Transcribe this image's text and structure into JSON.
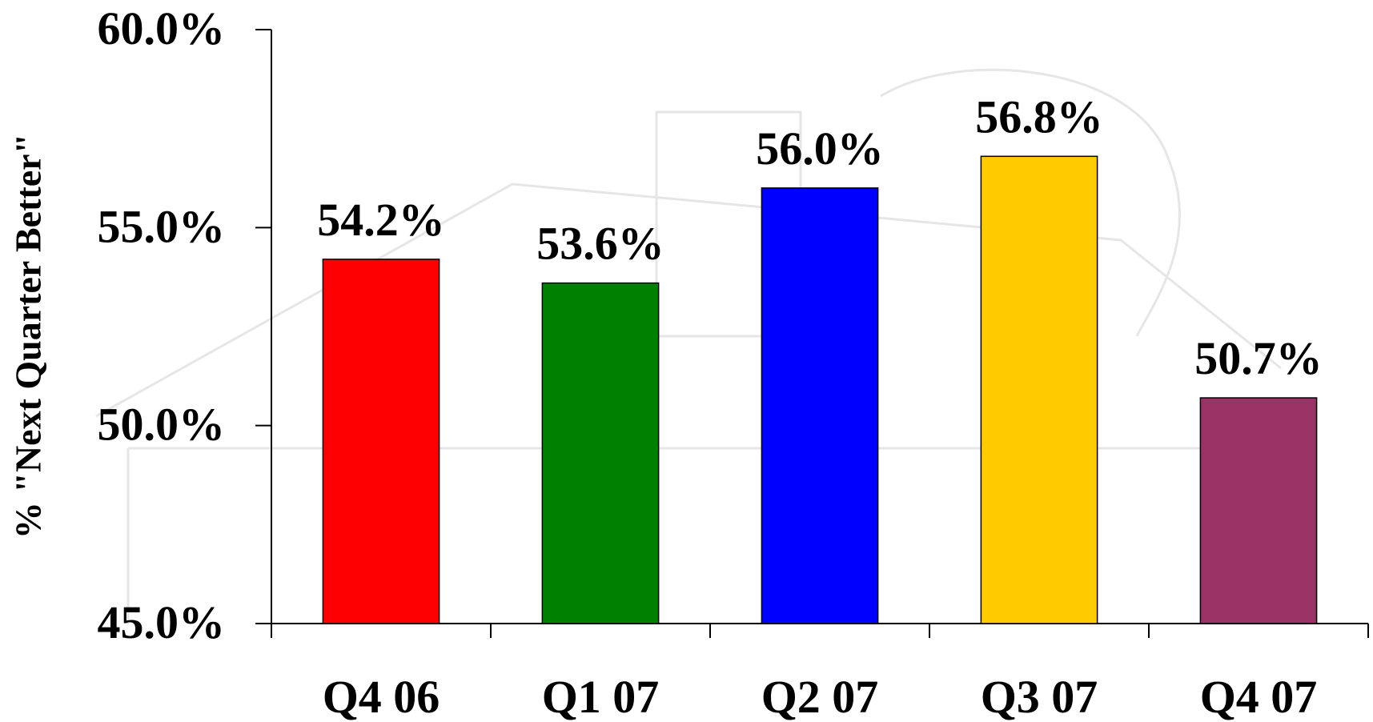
{
  "chart_data": {
    "type": "bar",
    "y_label": "% \"Next Quarter Better\"",
    "categories": [
      "Q4 06",
      "Q1 07",
      "Q2 07",
      "Q3 07",
      "Q4 07"
    ],
    "values": [
      54.2,
      53.6,
      56.0,
      56.8,
      50.7
    ],
    "value_labels": [
      "54.2%",
      "53.6%",
      "56.0%",
      "56.8%",
      "50.7%"
    ],
    "colors": [
      "#ff0000",
      "#008000",
      "#0000ff",
      "#ffcc00",
      "#993366"
    ],
    "ylim": [
      45,
      60
    ],
    "yticks": [
      {
        "value": 45,
        "label": "45.0%"
      },
      {
        "value": 50,
        "label": "50.0%"
      },
      {
        "value": 55,
        "label": "55.0%"
      },
      {
        "value": 60,
        "label": "60.0%"
      }
    ],
    "grid": false
  }
}
